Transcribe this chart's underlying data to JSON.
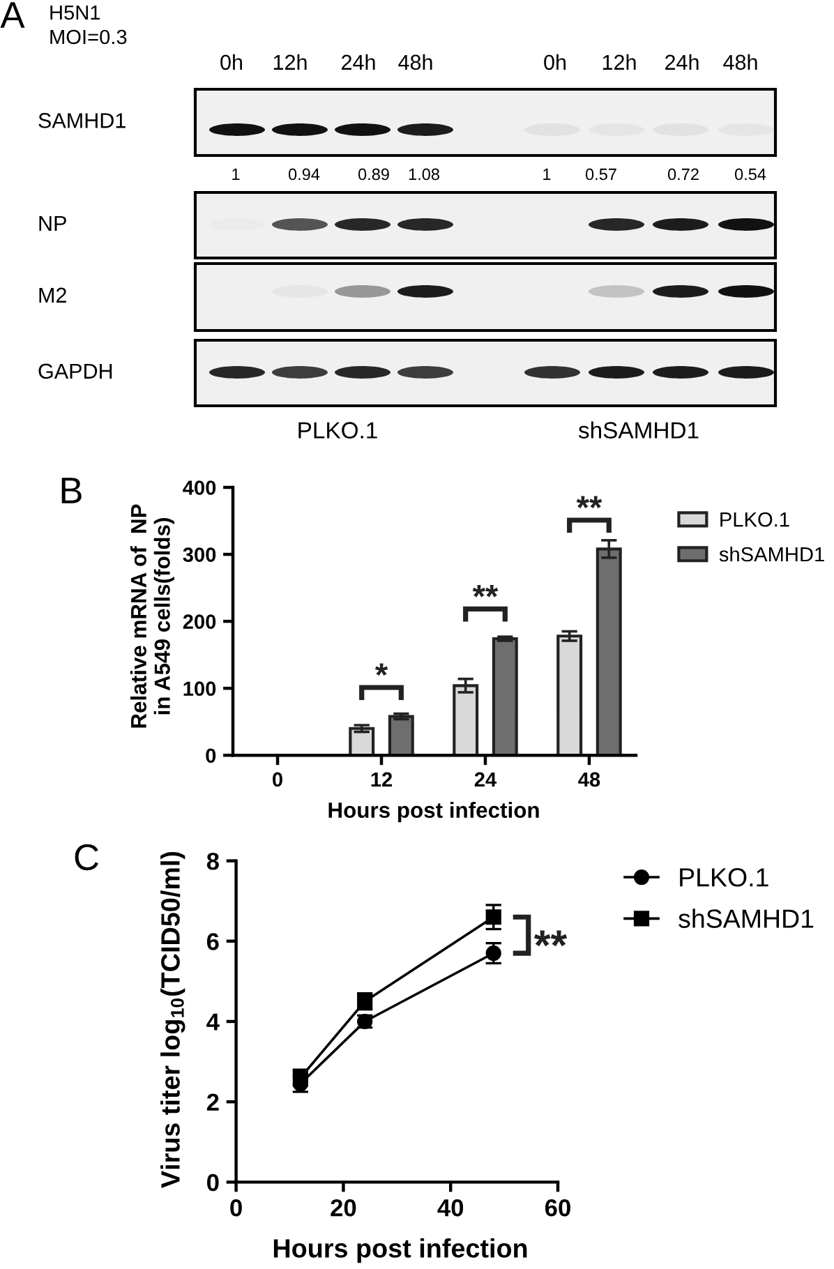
{
  "chart_data": [
    {
      "type": "other",
      "title": "A",
      "subtitle": "H5N1\nMOI=0.3",
      "categories": [
        "0h",
        "12h",
        "24h",
        "48h",
        "0h",
        "12h",
        "24h",
        "48h"
      ],
      "y_categories": [
        "SAMHD1",
        "NP",
        "M2",
        "GAPDH"
      ],
      "values": [
        1,
        0.94,
        0.89,
        1.08,
        1,
        0.57,
        0.72,
        0.54
      ],
      "data_labels": true,
      "annotations": [
        "PLKO.1",
        "shSAMHD1"
      ]
    },
    {
      "type": "bar",
      "title": "B",
      "categories": [
        "0",
        "12",
        "24",
        "48"
      ],
      "series": [
        {
          "name": "PLKO.1",
          "color": "#d9d9d9",
          "values": [
            null,
            40,
            104,
            178
          ],
          "errors": [
            null,
            5,
            10,
            7
          ]
        },
        {
          "name": "shSAMHD1",
          "color": "#6e6e6e",
          "values": [
            null,
            58,
            174,
            308
          ],
          "errors": [
            null,
            4,
            3,
            13
          ]
        }
      ],
      "ylim": [
        0,
        400
      ],
      "yticks": [
        0,
        100,
        200,
        300,
        400
      ],
      "xlabel": "Hours post infection",
      "ylabel": "Relative mRNA of  NP\nin A549 cells(folds)",
      "legend": "top right",
      "grid": false,
      "annotations": [
        "*",
        "**",
        "**"
      ]
    },
    {
      "type": "line",
      "title": "C",
      "series": [
        {
          "name": "PLKO.1",
          "color": "#000000",
          "marker": "circle",
          "x": [
            12,
            24,
            48
          ],
          "values": [
            2.45,
            4.0,
            5.7
          ],
          "errors": [
            0.2,
            0.15,
            0.25
          ]
        },
        {
          "name": "shSAMHD1",
          "color": "#000000",
          "marker": "square",
          "x": [
            12,
            24,
            48
          ],
          "values": [
            2.6,
            4.5,
            6.6
          ],
          "errors": [
            0.2,
            0.2,
            0.3
          ]
        }
      ],
      "xlim": [
        0,
        60
      ],
      "xticks": [
        0,
        20,
        40,
        60
      ],
      "ylim": [
        0,
        8
      ],
      "yticks": [
        0,
        2,
        4,
        6,
        8
      ],
      "xlabel": "Hours post infection",
      "ylabel": "Virus titer log$_{10}$(TCID50/ml)",
      "legend": "top right",
      "grid": false,
      "line_style": "solid",
      "annotations": [
        {
          "text": "**",
          "x": 48,
          "y": 6.15
        }
      ]
    }
  ]
}
